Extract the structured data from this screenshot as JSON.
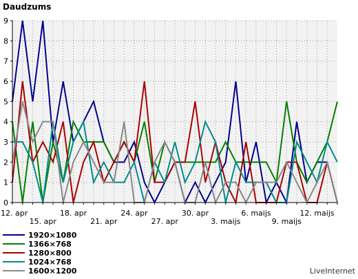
{
  "chart_data": {
    "type": "line",
    "title": "Daudzums",
    "ylim": [
      0,
      9
    ],
    "yticks": [
      0,
      1,
      2,
      3,
      4,
      5,
      6,
      7,
      8,
      9
    ],
    "grid": true,
    "legend_position": "bottom-left",
    "x_labels": [
      "12. apr",
      "15. apr",
      "18. apr",
      "21. apr",
      "24. apr",
      "27. apr",
      "30. apr",
      "3. maijs",
      "6. maijs",
      "9. maijs",
      "12. maijs"
    ],
    "series": [
      {
        "name": "1920×1080",
        "color": "#00008b",
        "values": [
          5,
          9,
          5,
          9,
          3,
          6,
          3,
          4,
          5,
          3,
          2,
          2,
          3,
          1,
          0,
          1,
          2,
          0,
          1,
          0,
          1,
          2,
          6,
          1,
          3,
          0,
          1,
          0,
          4,
          1,
          2,
          2,
          0
        ]
      },
      {
        "name": "1366×768",
        "color": "#008000",
        "values": [
          4,
          0,
          4,
          0,
          3,
          1,
          4,
          3,
          3,
          3,
          2,
          3,
          2,
          4,
          1,
          3,
          2,
          2,
          2,
          2,
          2,
          3,
          2,
          2,
          2,
          2,
          1,
          5,
          2,
          1,
          2,
          3,
          5
        ]
      },
      {
        "name": "1280×800",
        "color": "#aa0000",
        "values": [
          1,
          6,
          2,
          3,
          2,
          4,
          0,
          2,
          3,
          1,
          2,
          3,
          2,
          6,
          1,
          1,
          2,
          2,
          5,
          1,
          3,
          1,
          0,
          3,
          0,
          0,
          0,
          2,
          2,
          0,
          0,
          2,
          0
        ]
      },
      {
        "name": "1024×768",
        "color": "#008b8b",
        "values": [
          3,
          3,
          2,
          0,
          4,
          1,
          3,
          4,
          1,
          2,
          1,
          1,
          2,
          0,
          2,
          1,
          3,
          1,
          2,
          4,
          3,
          0,
          2,
          1,
          1,
          1,
          0,
          0,
          3,
          2,
          1,
          3,
          2
        ]
      },
      {
        "name": "1600×1200",
        "color": "#888888",
        "values": [
          2,
          5,
          3,
          4,
          4,
          0,
          2,
          3,
          2,
          1,
          1,
          4,
          0,
          0,
          2,
          3,
          2,
          0,
          0,
          2,
          0,
          1,
          1,
          0,
          1,
          1,
          1,
          2,
          1,
          0,
          1,
          2,
          0
        ]
      }
    ]
  },
  "footer": {
    "brand": "LiveInternet"
  }
}
